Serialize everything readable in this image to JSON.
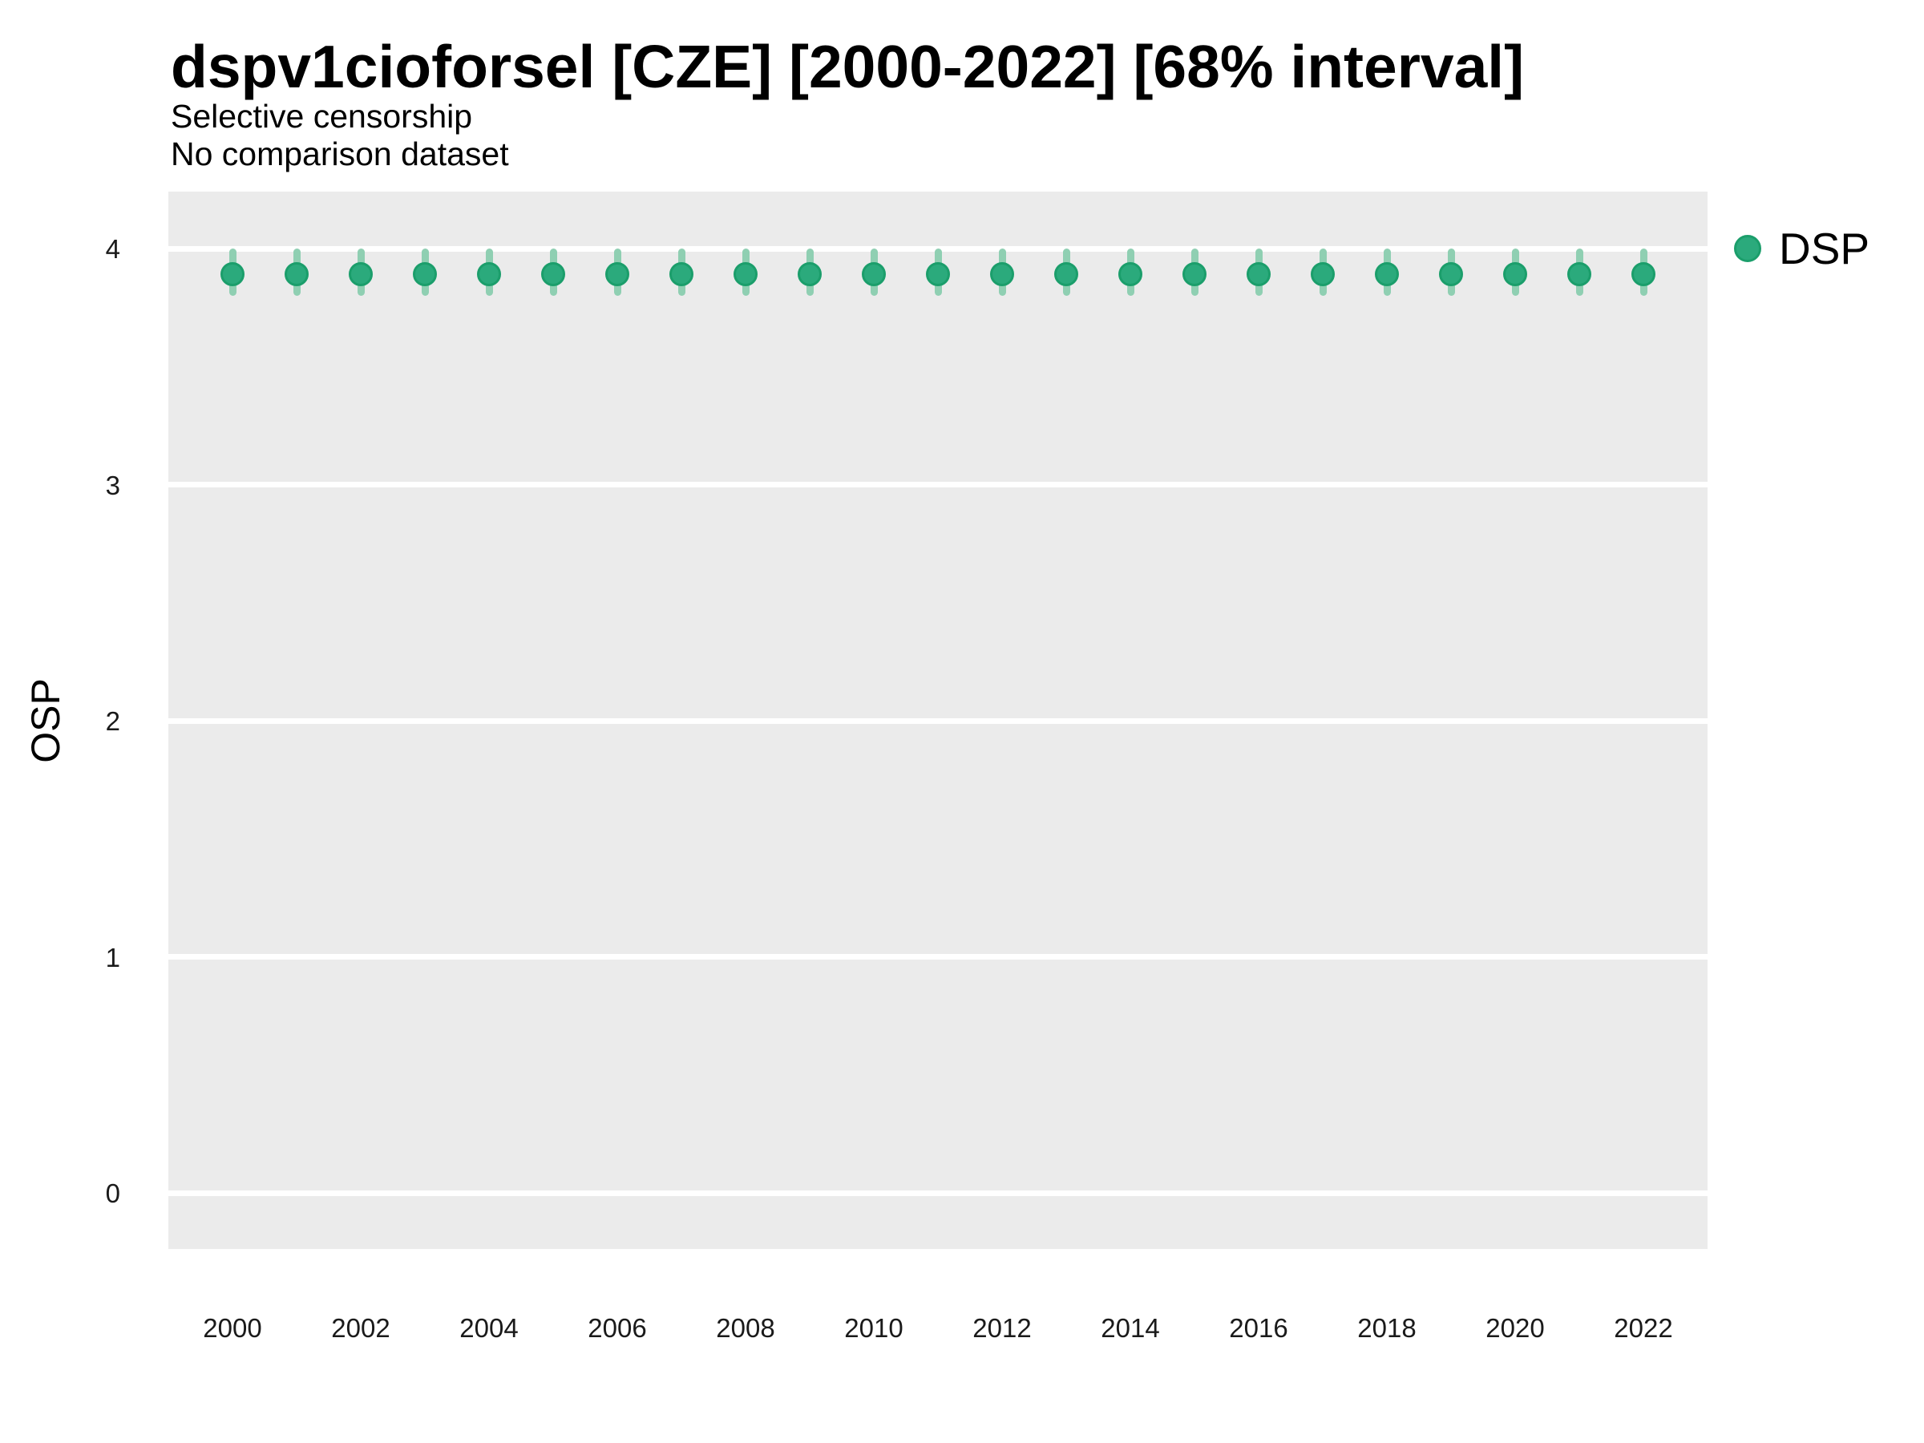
{
  "chart_data": {
    "type": "scatter",
    "title": "dspv1cioforsel [CZE] [2000-2022] [68% interval]",
    "subtitle_line1": "Selective censorship",
    "subtitle_line2": "No comparison dataset",
    "xlabel": "",
    "ylabel": "OSP",
    "interval_label": "68% interval",
    "country": "CZE",
    "grid": "horizontal-major-only",
    "legend_position": "right-top",
    "panel_color": "#ebebeb",
    "gridline_color": "#ffffff",
    "point_color": "#2baa7c",
    "point_stroke_color": "#1b9e6b",
    "errorbar_color": "#8fcfb2",
    "ylim": [
      -0.23,
      4.24
    ],
    "yticks": [
      0,
      1,
      2,
      3,
      4
    ],
    "xticks": [
      2000,
      2002,
      2004,
      2006,
      2008,
      2010,
      2012,
      2014,
      2016,
      2018,
      2020,
      2022
    ],
    "series": [
      {
        "name": "DSP",
        "points": [
          {
            "year": 2000,
            "est": 3.89,
            "lo": 3.8,
            "hi": 4.0
          },
          {
            "year": 2001,
            "est": 3.89,
            "lo": 3.8,
            "hi": 4.0
          },
          {
            "year": 2002,
            "est": 3.89,
            "lo": 3.8,
            "hi": 4.0
          },
          {
            "year": 2003,
            "est": 3.89,
            "lo": 3.8,
            "hi": 4.0
          },
          {
            "year": 2004,
            "est": 3.89,
            "lo": 3.8,
            "hi": 4.0
          },
          {
            "year": 2005,
            "est": 3.89,
            "lo": 3.8,
            "hi": 4.0
          },
          {
            "year": 2006,
            "est": 3.89,
            "lo": 3.8,
            "hi": 4.0
          },
          {
            "year": 2007,
            "est": 3.89,
            "lo": 3.8,
            "hi": 4.0
          },
          {
            "year": 2008,
            "est": 3.89,
            "lo": 3.8,
            "hi": 4.0
          },
          {
            "year": 2009,
            "est": 3.89,
            "lo": 3.8,
            "hi": 4.0
          },
          {
            "year": 2010,
            "est": 3.89,
            "lo": 3.8,
            "hi": 4.0
          },
          {
            "year": 2011,
            "est": 3.89,
            "lo": 3.8,
            "hi": 4.0
          },
          {
            "year": 2012,
            "est": 3.89,
            "lo": 3.8,
            "hi": 4.0
          },
          {
            "year": 2013,
            "est": 3.89,
            "lo": 3.8,
            "hi": 4.0
          },
          {
            "year": 2014,
            "est": 3.89,
            "lo": 3.8,
            "hi": 4.0
          },
          {
            "year": 2015,
            "est": 3.89,
            "lo": 3.8,
            "hi": 4.0
          },
          {
            "year": 2016,
            "est": 3.89,
            "lo": 3.8,
            "hi": 4.0
          },
          {
            "year": 2017,
            "est": 3.89,
            "lo": 3.8,
            "hi": 4.0
          },
          {
            "year": 2018,
            "est": 3.89,
            "lo": 3.8,
            "hi": 4.0
          },
          {
            "year": 2019,
            "est": 3.89,
            "lo": 3.8,
            "hi": 4.0
          },
          {
            "year": 2020,
            "est": 3.89,
            "lo": 3.8,
            "hi": 4.0
          },
          {
            "year": 2021,
            "est": 3.89,
            "lo": 3.8,
            "hi": 4.0
          },
          {
            "year": 2022,
            "est": 3.89,
            "lo": 3.8,
            "hi": 4.0
          }
        ]
      }
    ]
  }
}
